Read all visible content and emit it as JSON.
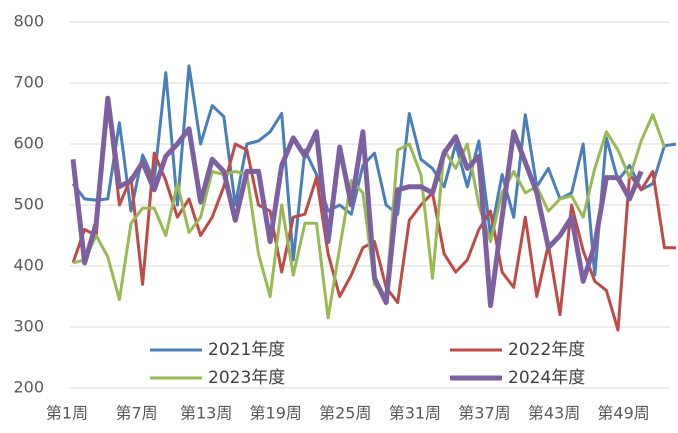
{
  "chart_data": {
    "type": "line",
    "categories": [
      "第1周",
      null,
      null,
      null,
      null,
      null,
      "第7周",
      null,
      null,
      null,
      null,
      null,
      "第13周",
      null,
      null,
      null,
      null,
      null,
      "第19周",
      null,
      null,
      null,
      null,
      null,
      "第25周",
      null,
      null,
      null,
      null,
      null,
      "第31周",
      null,
      null,
      null,
      null,
      null,
      "第37周",
      null,
      null,
      null,
      null,
      null,
      "第43周",
      null,
      null,
      null,
      null,
      null,
      "第49周",
      null,
      null,
      null,
      null
    ],
    "ylim": [
      200,
      800
    ],
    "yticks": [
      200,
      300,
      400,
      500,
      600,
      700,
      800
    ],
    "grid": true,
    "legend": "bottom",
    "series": [
      {
        "name": "2021年度",
        "color": "#4a7ebb",
        "width": 3,
        "values": [
          535,
          510,
          508,
          510,
          635,
          490,
          582,
          540,
          717,
          500,
          728,
          600,
          663,
          645,
          500,
          600,
          605,
          620,
          650,
          410,
          590,
          550,
          490,
          500,
          485,
          565,
          585,
          500,
          485,
          650,
          575,
          560,
          530,
          600,
          530,
          605,
          450,
          550,
          480,
          648,
          530,
          560,
          510,
          520,
          600,
          385,
          610,
          540,
          565,
          525,
          535,
          597,
          600
        ]
      },
      {
        "name": "2022年度",
        "color": "#be4b48",
        "width": 3,
        "values": [
          405,
          460,
          450,
          670,
          500,
          545,
          370,
          585,
          540,
          480,
          510,
          450,
          480,
          530,
          600,
          590,
          500,
          490,
          390,
          480,
          485,
          545,
          420,
          350,
          385,
          430,
          440,
          365,
          340,
          475,
          500,
          520,
          420,
          390,
          410,
          460,
          490,
          390,
          365,
          480,
          350,
          435,
          320,
          500,
          425,
          375,
          360,
          295,
          550,
          525,
          555,
          430,
          430
        ]
      },
      {
        "name": "2023年度",
        "color": "#98b954",
        "width": 3,
        "values": [
          405,
          410,
          450,
          415,
          345,
          470,
          495,
          495,
          450,
          535,
          455,
          480,
          555,
          550,
          555,
          550,
          420,
          350,
          500,
          385,
          470,
          470,
          315,
          430,
          540,
          520,
          370,
          350,
          590,
          600,
          550,
          380,
          590,
          560,
          600,
          500,
          440,
          520,
          555,
          520,
          530,
          490,
          510,
          515,
          480,
          560,
          620,
          590,
          545,
          605,
          648,
          595,
          null
        ]
      },
      {
        "name": "2024年度",
        "color": "#7d60a0",
        "width": 5,
        "values": [
          575,
          405,
          470,
          675,
          530,
          540,
          570,
          525,
          580,
          600,
          625,
          505,
          575,
          555,
          475,
          555,
          555,
          440,
          565,
          610,
          580,
          620,
          440,
          595,
          500,
          620,
          380,
          340,
          525,
          530,
          530,
          520,
          585,
          612,
          560,
          580,
          335,
          480,
          620,
          570,
          520,
          430,
          450,
          480,
          375,
          435,
          545,
          545,
          510,
          555,
          null,
          null,
          null
        ]
      }
    ]
  }
}
